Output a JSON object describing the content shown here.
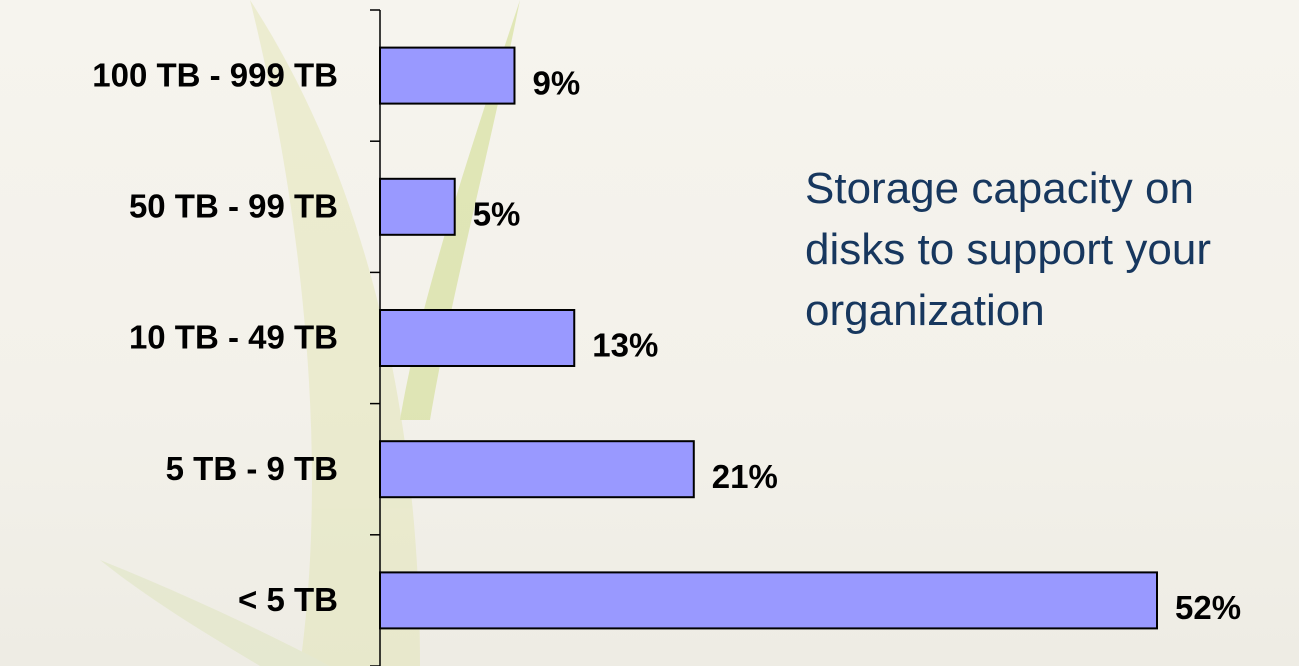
{
  "chart_data": {
    "type": "barh",
    "title": "Storage capacity on disks to support your organization",
    "categories": [
      "100 TB - 999 TB",
      "50 TB - 99 TB",
      "10 TB - 49 TB",
      "5 TB - 9 TB",
      "< 5 TB"
    ],
    "values": [
      9,
      5,
      13,
      21,
      52
    ],
    "value_labels": [
      "9%",
      "5%",
      "13%",
      "21%",
      "52%"
    ],
    "color": "#9999ff"
  }
}
